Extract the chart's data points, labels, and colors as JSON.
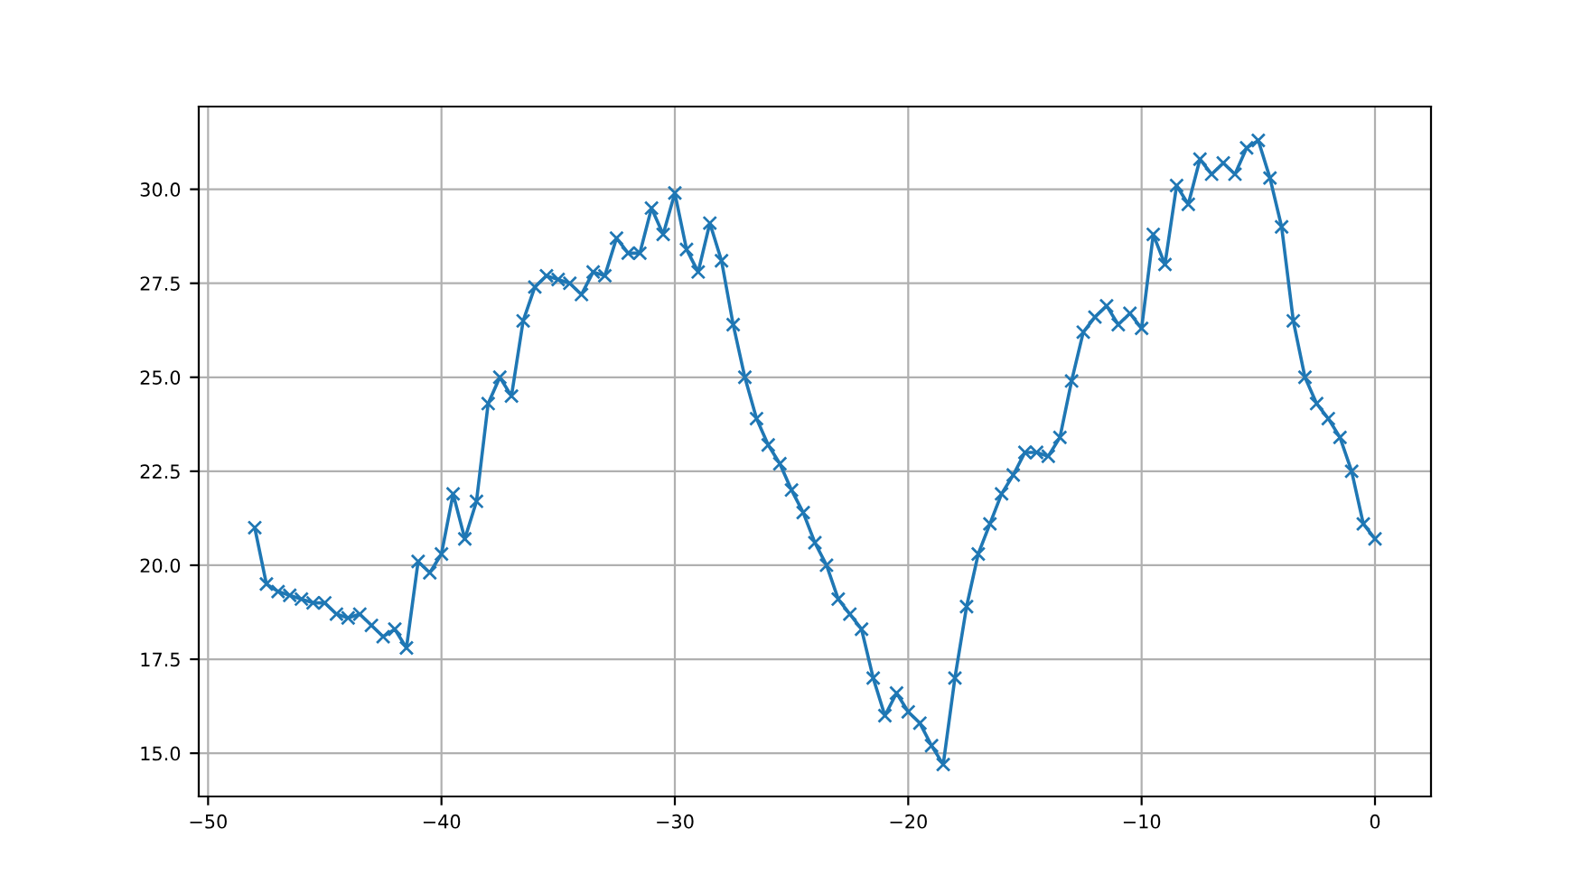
{
  "chart_data": {
    "type": "line",
    "x": [
      -48,
      -47.5,
      -47,
      -46.5,
      -46,
      -45.5,
      -45,
      -44.5,
      -44,
      -43.5,
      -43,
      -42.5,
      -42,
      -41.5,
      -41,
      -40.5,
      -40,
      -39.5,
      -39,
      -38.5,
      -38,
      -37.5,
      -37,
      -36.5,
      -36,
      -35.5,
      -35,
      -34.5,
      -34,
      -33.5,
      -33,
      -32.5,
      -32,
      -31.5,
      -31,
      -30.5,
      -30,
      -29.5,
      -29,
      -28.5,
      -28,
      -27.5,
      -27,
      -26.5,
      -26,
      -25.5,
      -25,
      -24.5,
      -24,
      -23.5,
      -23,
      -22.5,
      -22,
      -21.5,
      -21,
      -20.5,
      -20,
      -19.5,
      -19,
      -18.5,
      -18,
      -17.5,
      -17,
      -16.5,
      -16,
      -15.5,
      -15,
      -14.5,
      -14,
      -13.5,
      -13,
      -12.5,
      -12,
      -11.5,
      -11,
      -10.5,
      -10,
      -9.5,
      -9,
      -8.5,
      -8,
      -7.5,
      -7,
      -6.5,
      -6,
      -5.5,
      -5,
      -4.5,
      -4,
      -3.5,
      -3,
      -2.5,
      -2,
      -1.5,
      -1,
      -0.5,
      0
    ],
    "series": [
      {
        "color": "#1f77b4",
        "values": [
          21.0,
          19.5,
          19.3,
          19.2,
          19.1,
          19.0,
          19.0,
          18.7,
          18.6,
          18.7,
          18.4,
          18.1,
          18.3,
          17.8,
          20.1,
          19.8,
          20.3,
          21.9,
          20.7,
          21.7,
          24.3,
          25.0,
          24.5,
          26.5,
          27.4,
          27.7,
          27.6,
          27.5,
          27.2,
          27.8,
          27.7,
          28.7,
          28.3,
          28.3,
          29.5,
          28.8,
          29.9,
          28.4,
          27.8,
          29.1,
          28.1,
          26.4,
          25.0,
          23.9,
          23.2,
          22.7,
          22.0,
          21.4,
          20.6,
          20.0,
          19.1,
          18.7,
          18.3,
          17.0,
          16.0,
          16.6,
          16.1,
          15.8,
          15.2,
          14.7,
          17.0,
          18.9,
          20.3,
          21.1,
          21.9,
          22.4,
          23.0,
          23.0,
          22.9,
          23.4,
          24.9,
          26.2,
          26.6,
          26.9,
          26.4,
          26.7,
          26.3,
          28.8,
          28.0,
          30.1,
          29.6,
          30.8,
          30.4,
          30.7,
          30.4,
          31.1,
          31.3,
          30.3,
          29.0,
          26.5,
          25.0,
          24.3,
          23.9,
          23.4,
          22.5,
          21.1,
          20.7
        ]
      }
    ],
    "xlim": [
      -50.4,
      2.4
    ],
    "ylim": [
      13.85,
      32.2
    ],
    "xticks": [
      {
        "value": -50,
        "label": "−50"
      },
      {
        "value": -40,
        "label": "−40"
      },
      {
        "value": -30,
        "label": "−30"
      },
      {
        "value": -20,
        "label": "−20"
      },
      {
        "value": -10,
        "label": "−10"
      },
      0
    ],
    "yticks": [
      {
        "value": 15,
        "label": "15.0"
      },
      {
        "value": 17.5,
        "label": "17.5"
      },
      {
        "value": 20,
        "label": "20.0"
      },
      {
        "value": 22.5,
        "label": "22.5"
      },
      {
        "value": 25,
        "label": "25.0"
      },
      {
        "value": 27.5,
        "label": "27.5"
      },
      {
        "value": 30,
        "label": "30.0"
      }
    ],
    "grid": true,
    "marker": "cross",
    "line_style": "solid"
  }
}
